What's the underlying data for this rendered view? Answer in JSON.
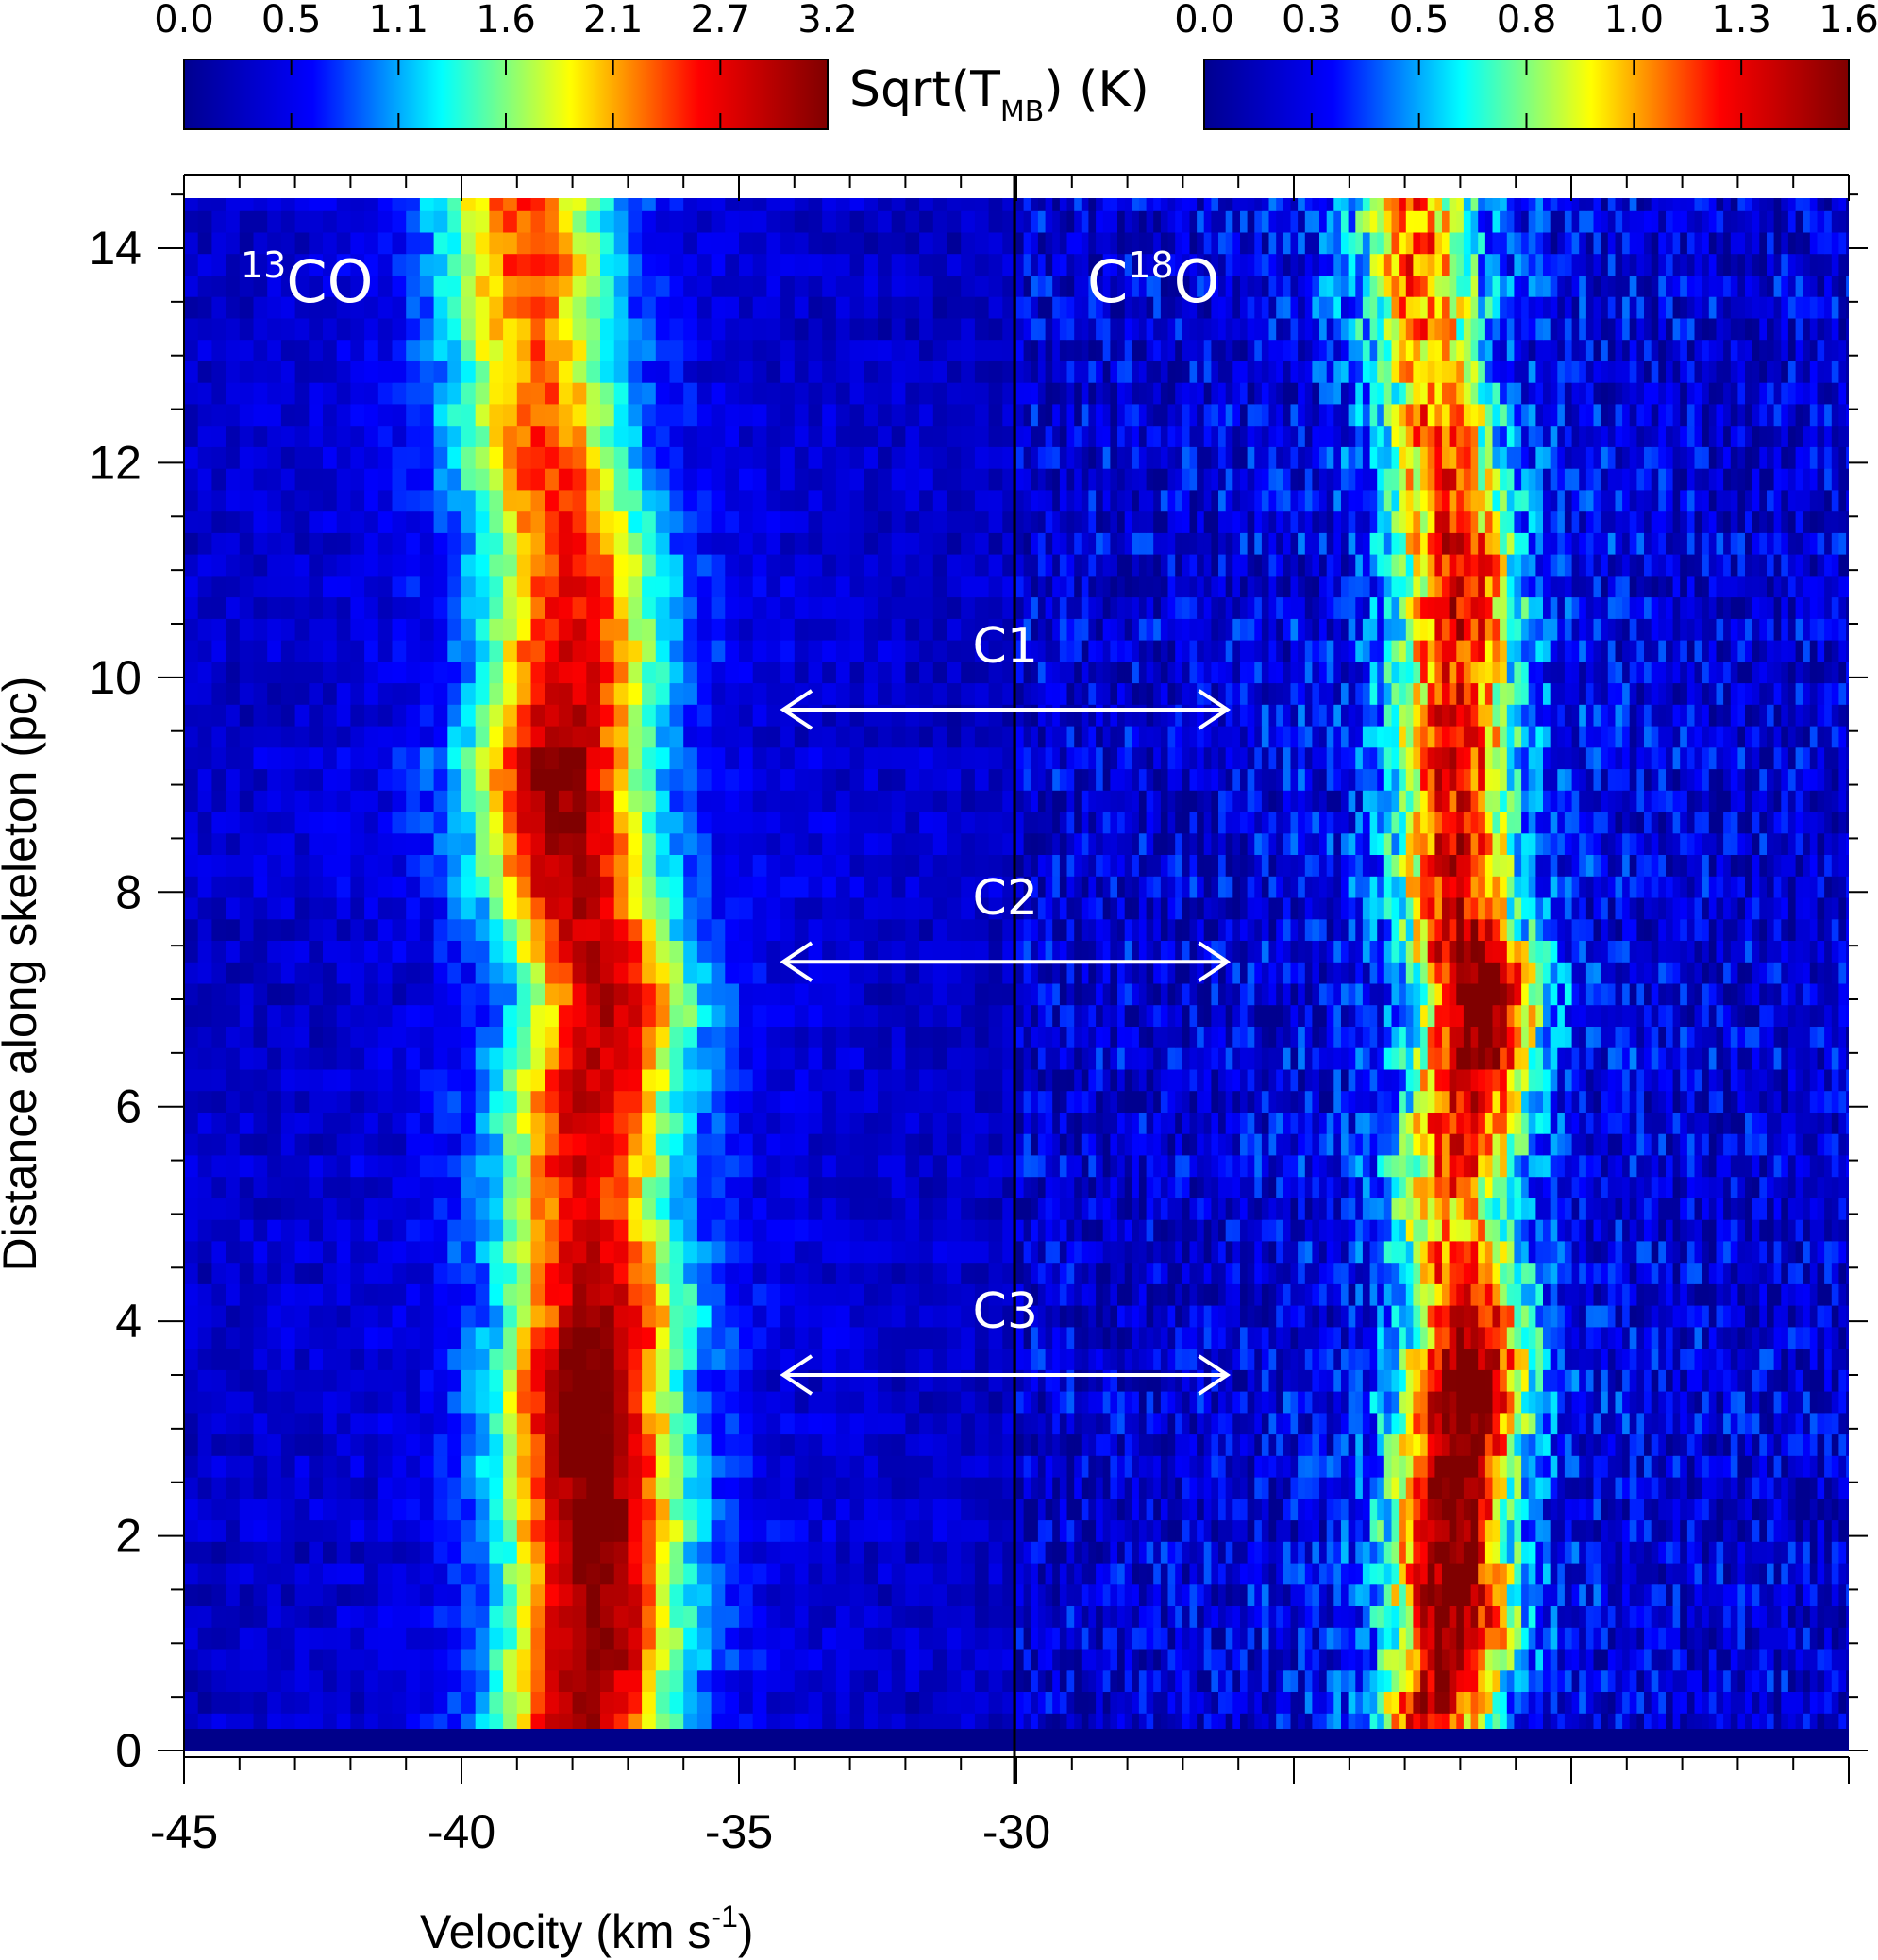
{
  "chart_data": {
    "type": "heatmap",
    "xlabel": "Velocity (km s",
    "xlabel_sup": "-1",
    "xlabel_close": ")",
    "ylabel": "Distance along skeleton (pc)",
    "x_ticks": [
      "-45",
      "-40",
      "-35",
      "-30"
    ],
    "y_ticks": [
      "0",
      "2",
      "4",
      "6",
      "8",
      "10",
      "12",
      "14"
    ],
    "panels": [
      {
        "name": "13CO",
        "label_sup": "13",
        "label_main": "CO",
        "xlim": [
          -45,
          -30
        ],
        "ylim": [
          0,
          14.5
        ],
        "peak_ridge": [
          [
            0.3,
            -37.8
          ],
          [
            1.0,
            -37.6
          ],
          [
            2.0,
            -37.6
          ],
          [
            3.0,
            -37.7
          ],
          [
            3.5,
            -37.8
          ],
          [
            4.0,
            -37.5
          ],
          [
            5.0,
            -37.8
          ],
          [
            6.0,
            -37.7
          ],
          [
            7.0,
            -37.3
          ],
          [
            8.0,
            -38.0
          ],
          [
            9.2,
            -38.3
          ],
          [
            10.0,
            -38.0
          ],
          [
            11.0,
            -38.0
          ],
          [
            12.0,
            -38.5
          ],
          [
            13.0,
            -38.7
          ],
          [
            14.0,
            -38.8
          ],
          [
            14.5,
            -38.9
          ]
        ],
        "peak_intensity": [
          [
            0.3,
            2.7
          ],
          [
            1.0,
            2.9
          ],
          [
            2.0,
            3.0
          ],
          [
            3.0,
            3.2
          ],
          [
            3.5,
            3.1
          ],
          [
            4.0,
            2.8
          ],
          [
            5.0,
            2.3
          ],
          [
            6.0,
            2.5
          ],
          [
            7.0,
            2.6
          ],
          [
            8.0,
            2.6
          ],
          [
            9.2,
            2.9
          ],
          [
            10.0,
            2.5
          ],
          [
            11.0,
            2.2
          ],
          [
            12.0,
            2.1
          ],
          [
            13.0,
            1.9
          ],
          [
            14.0,
            2.1
          ],
          [
            14.5,
            2.0
          ]
        ]
      },
      {
        "name": "C18O",
        "label_main1": "C",
        "label_sup": "18",
        "label_main2": "O",
        "xlim": [
          -30,
          -15
        ],
        "ylim": [
          0,
          14.5
        ],
        "peak_ridge": [
          [
            0.3,
            -22.5
          ],
          [
            1.0,
            -22.1
          ],
          [
            2.0,
            -22.2
          ],
          [
            3.0,
            -22.0
          ],
          [
            3.5,
            -21.9
          ],
          [
            4.0,
            -21.8
          ],
          [
            5.0,
            -22.2
          ],
          [
            6.0,
            -21.9
          ],
          [
            7.0,
            -21.6
          ],
          [
            8.0,
            -22.1
          ],
          [
            9.2,
            -22.1
          ],
          [
            10.0,
            -22.1
          ],
          [
            11.0,
            -22.0
          ],
          [
            12.0,
            -22.3
          ],
          [
            13.0,
            -22.6
          ],
          [
            14.0,
            -22.8
          ],
          [
            14.5,
            -22.8
          ]
        ],
        "peak_intensity": [
          [
            0.3,
            1.2
          ],
          [
            1.0,
            1.45
          ],
          [
            2.0,
            1.45
          ],
          [
            3.0,
            1.55
          ],
          [
            3.5,
            1.5
          ],
          [
            4.0,
            1.3
          ],
          [
            5.0,
            0.9
          ],
          [
            6.0,
            1.25
          ],
          [
            7.0,
            1.6
          ],
          [
            8.0,
            1.2
          ],
          [
            9.2,
            1.15
          ],
          [
            10.0,
            1.1
          ],
          [
            11.0,
            1.2
          ],
          [
            12.0,
            1.0
          ],
          [
            13.0,
            0.85
          ],
          [
            14.0,
            1.0
          ],
          [
            14.5,
            0.9
          ]
        ]
      }
    ],
    "colorbars": [
      {
        "ticks": [
          "0.0",
          "0.5",
          "1.1",
          "1.6",
          "2.1",
          "2.7",
          "3.2"
        ],
        "range": [
          0,
          3.2
        ]
      },
      {
        "ticks": [
          "0.0",
          "0.3",
          "0.5",
          "0.8",
          "1.0",
          "1.3",
          "1.6"
        ],
        "range": [
          0,
          1.6
        ]
      }
    ],
    "colorbar_label": "Sqrt(T",
    "colorbar_label_sub": "MB",
    "colorbar_label_end": ")  (K)",
    "colormap": [
      "#00008f",
      "#0000ff",
      "#00ffff",
      "#ffff00",
      "#ff0000",
      "#800000"
    ],
    "annotations": [
      {
        "label": "C1",
        "y": 9.7,
        "x_from": -34.2,
        "x_to": -26.2
      },
      {
        "label": "C2",
        "y": 7.35,
        "x_from": -34.2,
        "x_to": -26.2
      },
      {
        "label": "C3",
        "y": 3.5,
        "x_from": -34.2,
        "x_to": -26.2
      }
    ],
    "grid": false
  }
}
